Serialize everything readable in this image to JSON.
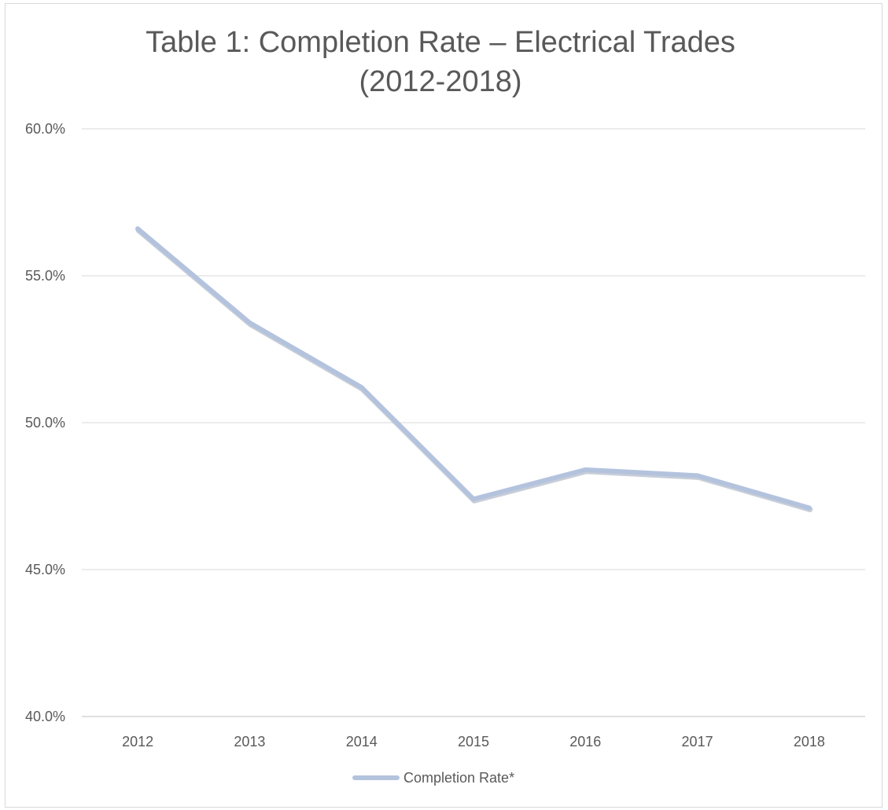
{
  "chart_data": {
    "type": "line",
    "title_lines": [
      "Table 1: Completion Rate – Electrical Trades",
      "(2012-2018)"
    ],
    "categories": [
      "2012",
      "2013",
      "2014",
      "2015",
      "2016",
      "2017",
      "2018"
    ],
    "series": [
      {
        "name": "Completion Rate*",
        "values": [
          56.6,
          53.4,
          51.2,
          47.4,
          48.4,
          48.2,
          47.1
        ],
        "color": "#b4c3dd"
      }
    ],
    "ylim": [
      40,
      60
    ],
    "yticks": [
      40,
      45,
      50,
      55,
      60
    ],
    "ytick_labels": [
      "40.0%",
      "45.0%",
      "50.0%",
      "55.0%",
      "60.0%"
    ],
    "grid": true,
    "legend_position": "bottom"
  }
}
